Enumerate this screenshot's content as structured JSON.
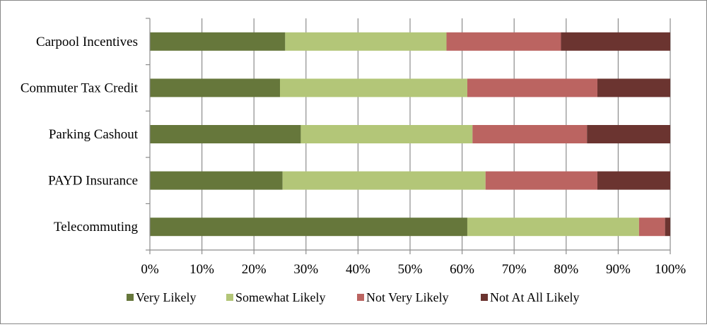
{
  "chart_data": {
    "type": "bar",
    "orientation": "horizontal",
    "stacked": "percent",
    "categories": [
      "Carpool Incentives",
      "Commuter Tax Credit",
      "Parking Cashout",
      "PAYD Insurance",
      "Telecommuting"
    ],
    "series": [
      {
        "name": "Very Likely",
        "color": "#66773b",
        "values": [
          26,
          25,
          29,
          25.5,
          61
        ]
      },
      {
        "name": "Somewhat Likely",
        "color": "#b3c678",
        "values": [
          31,
          36,
          33,
          39,
          33
        ]
      },
      {
        "name": "Not Very Likely",
        "color": "#bb6461",
        "values": [
          22,
          25,
          22,
          21.5,
          5
        ]
      },
      {
        "name": "Not At All Likely",
        "color": "#6b3430",
        "values": [
          21,
          14,
          16,
          14,
          1
        ]
      }
    ],
    "x_ticks": [
      "0%",
      "10%",
      "20%",
      "30%",
      "40%",
      "50%",
      "60%",
      "70%",
      "80%",
      "90%",
      "100%"
    ],
    "xlim": [
      0,
      100
    ],
    "grid": "vertical",
    "legend": "bottom"
  }
}
